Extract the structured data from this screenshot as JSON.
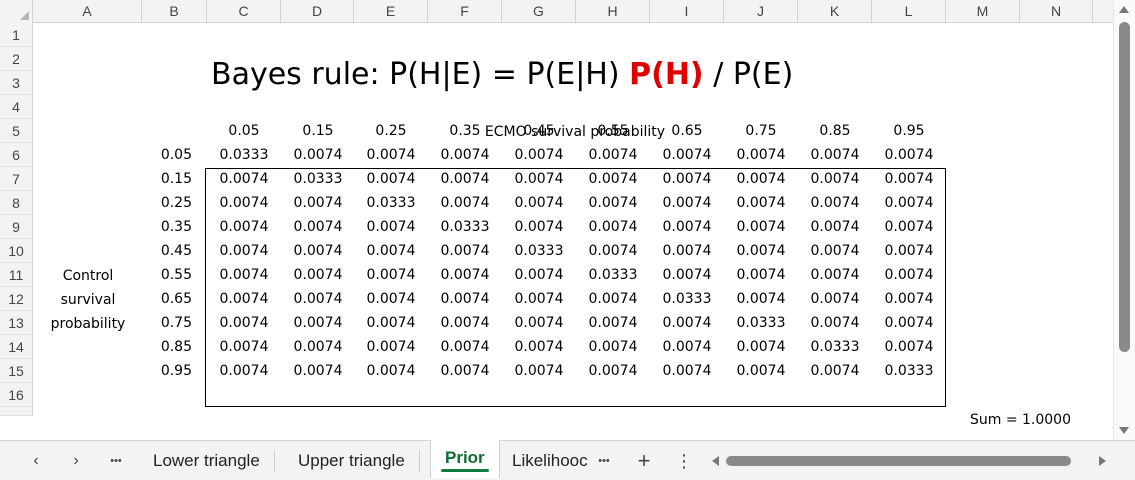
{
  "columns": [
    "A",
    "B",
    "C",
    "D",
    "E",
    "F",
    "G",
    "H",
    "I",
    "J",
    "K",
    "L",
    "M",
    "N"
  ],
  "rows": [
    "1",
    "2",
    "3",
    "4",
    "5",
    "6",
    "7",
    "8",
    "9",
    "10",
    "11",
    "12",
    "13",
    "14",
    "15",
    "16"
  ],
  "title": {
    "prefix": "Bayes rule: P(H|E) = P(E|H) ",
    "highlight": "P(H)",
    "suffix": " / P(E)",
    "highlight_color": "#e00000"
  },
  "x_axis_label": "ECMO survival probability",
  "x_values": [
    "0.05",
    "0.15",
    "0.25",
    "0.35",
    "0.45",
    "0.55",
    "0.65",
    "0.75",
    "0.85",
    "0.95"
  ],
  "y_axis_label": [
    "Control",
    "survival",
    "probability"
  ],
  "y_values": [
    "0.05",
    "0.15",
    "0.25",
    "0.35",
    "0.45",
    "0.55",
    "0.65",
    "0.75",
    "0.85",
    "0.95"
  ],
  "matrix": [
    [
      "0.0333",
      "0.0074",
      "0.0074",
      "0.0074",
      "0.0074",
      "0.0074",
      "0.0074",
      "0.0074",
      "0.0074",
      "0.0074"
    ],
    [
      "0.0074",
      "0.0333",
      "0.0074",
      "0.0074",
      "0.0074",
      "0.0074",
      "0.0074",
      "0.0074",
      "0.0074",
      "0.0074"
    ],
    [
      "0.0074",
      "0.0074",
      "0.0333",
      "0.0074",
      "0.0074",
      "0.0074",
      "0.0074",
      "0.0074",
      "0.0074",
      "0.0074"
    ],
    [
      "0.0074",
      "0.0074",
      "0.0074",
      "0.0333",
      "0.0074",
      "0.0074",
      "0.0074",
      "0.0074",
      "0.0074",
      "0.0074"
    ],
    [
      "0.0074",
      "0.0074",
      "0.0074",
      "0.0074",
      "0.0333",
      "0.0074",
      "0.0074",
      "0.0074",
      "0.0074",
      "0.0074"
    ],
    [
      "0.0074",
      "0.0074",
      "0.0074",
      "0.0074",
      "0.0074",
      "0.0333",
      "0.0074",
      "0.0074",
      "0.0074",
      "0.0074"
    ],
    [
      "0.0074",
      "0.0074",
      "0.0074",
      "0.0074",
      "0.0074",
      "0.0074",
      "0.0333",
      "0.0074",
      "0.0074",
      "0.0074"
    ],
    [
      "0.0074",
      "0.0074",
      "0.0074",
      "0.0074",
      "0.0074",
      "0.0074",
      "0.0074",
      "0.0333",
      "0.0074",
      "0.0074"
    ],
    [
      "0.0074",
      "0.0074",
      "0.0074",
      "0.0074",
      "0.0074",
      "0.0074",
      "0.0074",
      "0.0074",
      "0.0333",
      "0.0074"
    ],
    [
      "0.0074",
      "0.0074",
      "0.0074",
      "0.0074",
      "0.0074",
      "0.0074",
      "0.0074",
      "0.0074",
      "0.0074",
      "0.0333"
    ]
  ],
  "sum_label": "Sum =",
  "sum_value": "1.0000",
  "tabbar": {
    "prev": "‹",
    "next": "›",
    "more_left": "•••",
    "tabs": [
      "Lower triangle",
      "Upper triangle",
      "Prior",
      "Likelihooc"
    ],
    "active_tab": "Prior",
    "more_right": "•••",
    "add": "+",
    "menu": "⋮"
  },
  "icons": [
    "chevron-left-icon",
    "chevron-right-icon",
    "more-icon",
    "add-sheet-icon",
    "menu-icon"
  ]
}
